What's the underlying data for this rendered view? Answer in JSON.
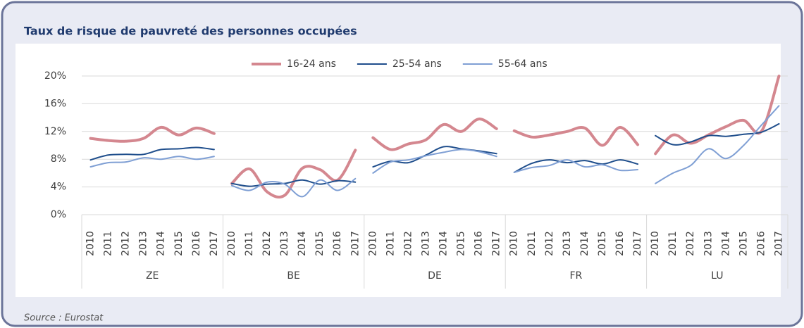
{
  "chart_data": {
    "type": "line",
    "title": "Taux de risque de pauvreté des personnes occupées",
    "source": "Source : Eurostat",
    "groups": [
      "ZE",
      "BE",
      "DE",
      "FR",
      "LU"
    ],
    "categories": [
      "2010",
      "2011",
      "2012",
      "2013",
      "2014",
      "2015",
      "2016",
      "2017",
      "2010",
      "2011",
      "2012",
      "2013",
      "2014",
      "2015",
      "2016",
      "2017",
      "2010",
      "2011",
      "2012",
      "2013",
      "2014",
      "2015",
      "2016",
      "2017",
      "2010",
      "2011",
      "2012",
      "2013",
      "2014",
      "2015",
      "2016",
      "2017",
      "2010",
      "2011",
      "2012",
      "2013",
      "2014",
      "2015",
      "2016",
      "2017"
    ],
    "series": [
      {
        "name": "16-24 ans",
        "color": "#d4878f",
        "width": 4,
        "values": [
          11.0,
          10.7,
          10.6,
          11.0,
          12.6,
          11.5,
          12.5,
          11.7,
          4.5,
          6.6,
          3.3,
          2.8,
          6.7,
          6.5,
          5.0,
          9.3,
          11.1,
          9.4,
          10.2,
          10.8,
          13.0,
          12.0,
          13.8,
          12.4,
          12.1,
          11.2,
          11.5,
          12.0,
          12.5,
          10.0,
          12.6,
          10.1,
          8.8,
          11.5,
          10.3,
          11.5,
          12.7,
          13.6,
          12.0,
          20.0
        ]
      },
      {
        "name": "25-54 ans",
        "color": "#1f4e8c",
        "width": 2,
        "values": [
          7.9,
          8.6,
          8.7,
          8.7,
          9.4,
          9.5,
          9.7,
          9.4,
          4.5,
          4.1,
          4.4,
          4.5,
          5.0,
          4.4,
          4.9,
          4.7,
          6.9,
          7.7,
          7.5,
          8.6,
          9.8,
          9.5,
          9.2,
          8.8,
          6.1,
          7.4,
          7.9,
          7.5,
          7.8,
          7.3,
          7.9,
          7.3,
          11.4,
          10.1,
          10.5,
          11.4,
          11.3,
          11.6,
          11.9,
          13.1
        ]
      },
      {
        "name": "55-64 ans",
        "color": "#7f9fd4",
        "width": 2,
        "values": [
          6.9,
          7.5,
          7.6,
          8.2,
          8.0,
          8.4,
          8.0,
          8.4,
          4.2,
          3.5,
          4.7,
          4.4,
          2.6,
          5.0,
          3.5,
          5.2,
          6.0,
          7.6,
          7.9,
          8.5,
          9.0,
          9.4,
          9.1,
          8.4,
          6.1,
          6.8,
          7.1,
          7.9,
          6.9,
          7.2,
          6.4,
          6.5,
          4.5,
          6.0,
          7.1,
          9.5,
          8.1,
          10.0,
          12.9,
          15.7
        ]
      }
    ],
    "ylim": [
      0,
      20
    ],
    "yticks": [
      {
        "value": 0,
        "label": "0%"
      },
      {
        "value": 4,
        "label": "4%"
      },
      {
        "value": 8,
        "label": "8%"
      },
      {
        "value": 12,
        "label": "12%"
      },
      {
        "value": 16,
        "label": "16%"
      },
      {
        "value": 20,
        "label": "20%"
      }
    ],
    "grid": true
  }
}
